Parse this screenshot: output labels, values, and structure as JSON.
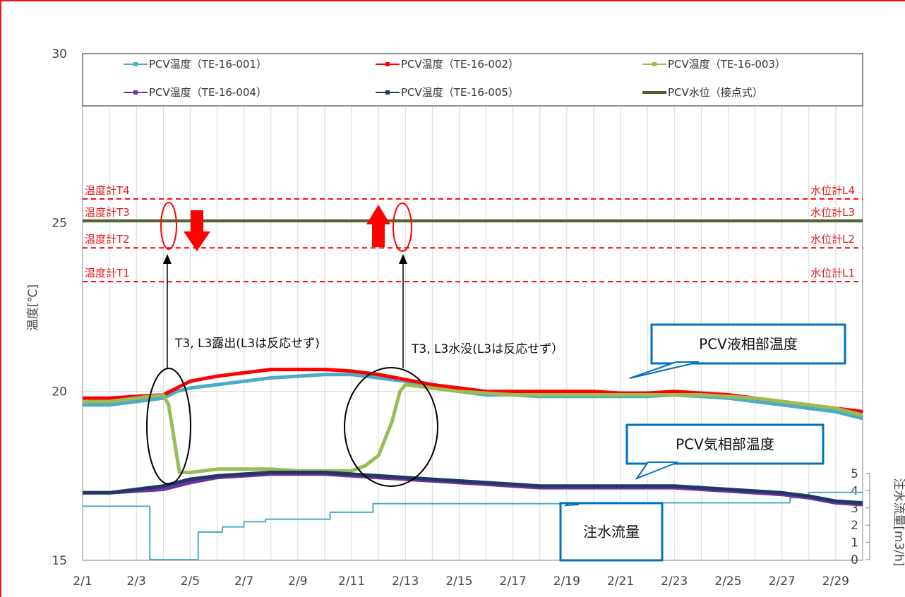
{
  "chart_data": {
    "type": "line",
    "ylabel": "温度[℃]",
    "ylabel2": "注水流量[m3/h]",
    "ylim": [
      15,
      30
    ],
    "yticks": [
      15,
      20,
      25,
      30
    ],
    "y2lim": [
      0,
      5
    ],
    "y2ticks": [
      0,
      1,
      2,
      3,
      4,
      5
    ],
    "xlim_day": [
      1,
      30
    ],
    "xticks": [
      "2/1",
      "2/3",
      "2/5",
      "2/7",
      "2/9",
      "2/11",
      "2/13",
      "2/15",
      "2/17",
      "2/19",
      "2/21",
      "2/23",
      "2/25",
      "2/27",
      "2/29"
    ],
    "grid": true,
    "legend_position": "top",
    "series": [
      {
        "name": "PCV温度（TE-16-001）",
        "color": "#4bacc6",
        "axis": "left",
        "x": [
          1,
          2,
          3,
          4,
          4.5,
          5,
          6,
          7,
          8,
          9,
          10,
          11,
          12,
          13,
          14,
          15,
          16,
          17,
          18,
          19,
          20,
          21,
          22,
          23,
          24,
          25,
          26,
          27,
          28,
          29,
          29.5,
          30
        ],
        "y": [
          19.6,
          19.6,
          19.7,
          19.8,
          20.0,
          20.1,
          20.2,
          20.3,
          20.4,
          20.45,
          20.5,
          20.5,
          20.4,
          20.3,
          20.1,
          20.0,
          19.9,
          19.9,
          19.85,
          19.85,
          19.85,
          19.85,
          19.85,
          19.9,
          19.85,
          19.8,
          19.7,
          19.6,
          19.5,
          19.4,
          19.3,
          19.2
        ]
      },
      {
        "name": "PCV温度（TE-16-002）",
        "color": "#ff0000",
        "axis": "left",
        "x": [
          1,
          2,
          3,
          4,
          4.5,
          5,
          6,
          7,
          8,
          9,
          10,
          11,
          12,
          13,
          14,
          15,
          16,
          17,
          18,
          19,
          20,
          21,
          22,
          23,
          24,
          25,
          26,
          27,
          28,
          29,
          29.5,
          30
        ],
        "y": [
          19.8,
          19.8,
          19.85,
          19.9,
          20.1,
          20.3,
          20.45,
          20.55,
          20.65,
          20.65,
          20.65,
          20.6,
          20.5,
          20.35,
          20.2,
          20.1,
          20.0,
          20.0,
          20.0,
          20.0,
          20.0,
          19.95,
          19.95,
          20.0,
          19.95,
          19.9,
          19.8,
          19.7,
          19.6,
          19.5,
          19.45,
          19.4
        ]
      },
      {
        "name": "PCV温度（TE-16-003）",
        "color": "#9bbb59",
        "axis": "left",
        "x": [
          1,
          2,
          3,
          4,
          4.2,
          4.4,
          4.6,
          5,
          6,
          7,
          8,
          9,
          10,
          11,
          11.5,
          12,
          12.5,
          12.8,
          13,
          14,
          15,
          16,
          17,
          18,
          19,
          20,
          21,
          22,
          23,
          24,
          25,
          26,
          27,
          28,
          29,
          29.5,
          30
        ],
        "y": [
          19.7,
          19.7,
          19.8,
          19.9,
          19.6,
          18.6,
          17.6,
          17.6,
          17.7,
          17.7,
          17.7,
          17.65,
          17.65,
          17.65,
          17.8,
          18.1,
          19.1,
          20.0,
          20.2,
          20.1,
          20.0,
          19.95,
          19.9,
          19.9,
          19.9,
          19.9,
          19.9,
          19.9,
          19.9,
          19.9,
          19.85,
          19.8,
          19.7,
          19.6,
          19.5,
          19.4,
          19.3
        ]
      },
      {
        "name": "PCV温度（TE-16-004）",
        "color": "#7030a0",
        "axis": "left",
        "x": [
          1,
          2,
          3,
          4,
          5,
          6,
          7,
          8,
          9,
          10,
          11,
          12,
          13,
          14,
          15,
          16,
          17,
          18,
          19,
          20,
          21,
          22,
          23,
          24,
          25,
          26,
          27,
          28,
          29,
          30
        ],
        "y": [
          17.0,
          17.0,
          17.05,
          17.1,
          17.3,
          17.45,
          17.5,
          17.55,
          17.55,
          17.55,
          17.5,
          17.45,
          17.4,
          17.35,
          17.3,
          17.25,
          17.2,
          17.15,
          17.15,
          17.15,
          17.15,
          17.15,
          17.15,
          17.1,
          17.05,
          17.0,
          16.95,
          16.85,
          16.7,
          16.65
        ]
      },
      {
        "name": "PCV温度（TE-16-005）",
        "color": "#1f3864",
        "axis": "left",
        "x": [
          1,
          2,
          3,
          4,
          5,
          6,
          7,
          8,
          9,
          10,
          11,
          12,
          13,
          14,
          15,
          16,
          17,
          18,
          19,
          20,
          21,
          22,
          23,
          24,
          25,
          26,
          27,
          28,
          29,
          30
        ],
        "y": [
          17.0,
          17.0,
          17.1,
          17.2,
          17.4,
          17.5,
          17.55,
          17.6,
          17.6,
          17.6,
          17.55,
          17.5,
          17.45,
          17.4,
          17.35,
          17.3,
          17.25,
          17.2,
          17.2,
          17.2,
          17.2,
          17.2,
          17.2,
          17.15,
          17.1,
          17.05,
          17.0,
          16.9,
          16.75,
          16.7
        ]
      },
      {
        "name": "PCV水位（接点式）",
        "color": "#4f6228",
        "axis": "left",
        "x": [
          1,
          30
        ],
        "y": [
          25.05,
          25.05
        ]
      },
      {
        "name": "注水流量",
        "color": "#4bacc6",
        "axis": "right",
        "step": true,
        "x": [
          1,
          3.5,
          3.5,
          5.3,
          5.3,
          6.2,
          6.2,
          7.0,
          7.0,
          7.8,
          7.8,
          10.2,
          10.2,
          11.8,
          11.8,
          21.8,
          21.8,
          22.0,
          22.0,
          27.3,
          27.3,
          28.0,
          28.0,
          30
        ],
        "y": [
          3.1,
          3.1,
          0.0,
          0.0,
          1.6,
          1.6,
          1.9,
          1.9,
          2.2,
          2.2,
          2.35,
          2.35,
          2.75,
          2.75,
          3.25,
          3.25,
          3.1,
          3.1,
          3.3,
          3.3,
          3.6,
          3.6,
          3.9,
          3.9
        ]
      }
    ],
    "reference_lines": [
      {
        "left_label": "温度計T4",
        "right_label": "水位計L4",
        "y": 25.7
      },
      {
        "left_label": "温度計T3",
        "right_label": "水位計L3",
        "y": 25.05
      },
      {
        "left_label": "温度計T2",
        "right_label": "水位計L2",
        "y": 24.25
      },
      {
        "left_label": "温度計T1",
        "right_label": "水位計L1",
        "y": 23.25
      }
    ],
    "annotations": {
      "exposed_text": "T3, L3露出(L3は反応せず)",
      "submerged_text": "T3, L3水没(L3は反応せず）",
      "liquid_callout": "PCV液相部温度",
      "gas_callout": "PCV気相部温度",
      "flow_callout": "注水流量"
    }
  }
}
